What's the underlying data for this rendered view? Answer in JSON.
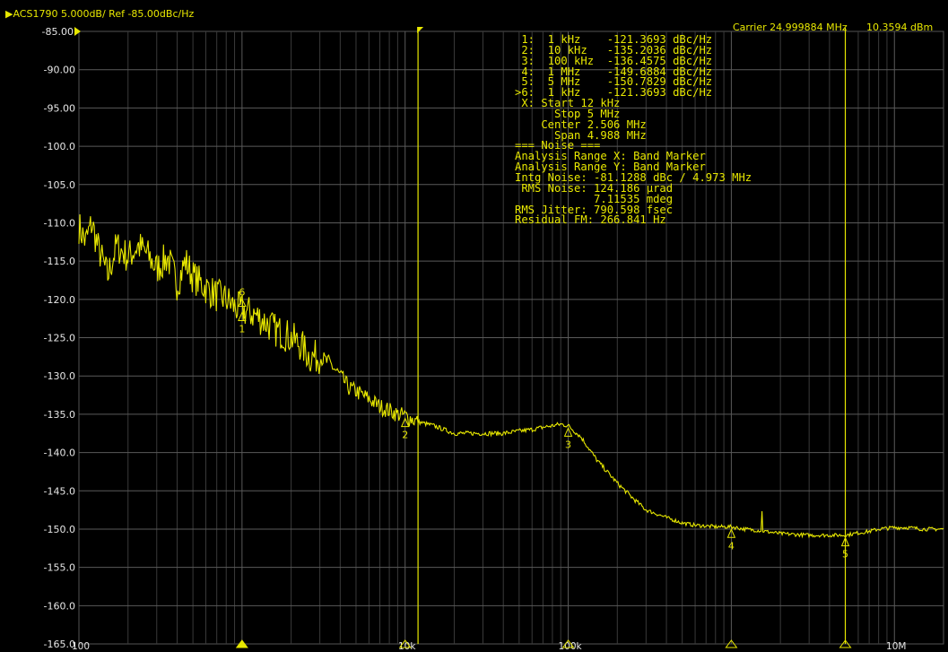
{
  "header": {
    "title": "ACS1790 5.000dB/ Ref -85.00dBc/Hz",
    "carrier": "Carrier 24.999884 MHz",
    "carrier_power": "10.3594 dBm"
  },
  "info_lines": [
    " 1:  1 kHz    -121.3693 dBc/Hz",
    " 2:  10 kHz   -135.2036 dBc/Hz",
    " 3:  100 kHz  -136.4575 dBc/Hz",
    " 4:  1 MHz    -149.6884 dBc/Hz",
    " 5:  5 MHz    -150.7829 dBc/Hz",
    ">6:  1 kHz    -121.3693 dBc/Hz",
    " X: Start 12 kHz",
    "      Stop 5 MHz",
    "    Center 2.506 MHz",
    "      Span 4.988 MHz",
    "=== Noise ===",
    "Analysis Range X: Band Marker",
    "Analysis Range Y: Band Marker",
    "Intg Noise: -81.1288 dBc / 4.973 MHz",
    " RMS Noise: 124.186 µrad",
    "            7.11535 mdeg",
    "RMS Jitter: 790.598 fsec",
    "Residual FM: 266.841 Hz"
  ],
  "chart_data": {
    "type": "line",
    "xscale": "log",
    "xlim": [
      100,
      20000000
    ],
    "ylim": [
      -165,
      -85
    ],
    "ref_label": "-85.00",
    "y_ticks": [
      "-85.00",
      "-90.00",
      "-95.00",
      "-100.0",
      "-105.0",
      "-110.0",
      "-115.0",
      "-120.0",
      "-125.0",
      "-130.0",
      "-135.0",
      "-140.0",
      "-145.0",
      "-150.0",
      "-155.0",
      "-160.0",
      "-165.0"
    ],
    "x_tick_labels": [
      {
        "x": 100,
        "label": "100"
      },
      {
        "x": 10000,
        "label": "10k"
      },
      {
        "x": 100000,
        "label": "100k"
      },
      {
        "x": 10000000,
        "label": "10M"
      }
    ],
    "grid": true,
    "series": [
      {
        "x": [
          100,
          110,
          120,
          130,
          150,
          170,
          200,
          230,
          260,
          300,
          350,
          400,
          450,
          500,
          600,
          700,
          800,
          900,
          1000,
          1200,
          1400,
          1600,
          1800,
          2000,
          2300,
          2600,
          3000,
          3500,
          4000,
          4500,
          5000,
          6000,
          7000,
          8000,
          9000,
          10000,
          12000,
          15000,
          20000,
          25000,
          30000,
          40000,
          50000,
          60000,
          70000,
          80000,
          90000,
          100000,
          120000,
          150000,
          200000,
          250000,
          300000,
          400000,
          500000,
          600000,
          700000,
          800000,
          900000,
          1000000,
          1200000,
          1500000,
          2000000,
          3000000,
          4000000,
          5000000,
          6000000,
          7000000,
          8000000,
          10000000,
          12000000,
          15000000,
          20000000
        ],
        "y": [
          -110.5,
          -112.5,
          -110,
          -113,
          -117,
          -113,
          -114.5,
          -113,
          -114,
          -116,
          -114.5,
          -118,
          -115,
          -117,
          -118.5,
          -119.5,
          -120,
          -121,
          -121.4,
          -122,
          -123,
          -124,
          -124.5,
          -125,
          -126,
          -127.5,
          -127.5,
          -128.5,
          -130,
          -131.5,
          -132,
          -133,
          -134,
          -134.5,
          -135,
          -135.2,
          -136,
          -136.5,
          -137.5,
          -137.5,
          -137.5,
          -137.5,
          -137.2,
          -137,
          -136.7,
          -136.5,
          -136.3,
          -136.5,
          -138,
          -141,
          -144,
          -146,
          -147.5,
          -148.5,
          -149.2,
          -149.5,
          -149.6,
          -149.7,
          -149.7,
          -149.7,
          -150,
          -150.2,
          -150.6,
          -150.8,
          -150.8,
          -150.8,
          -150.5,
          -150.3,
          -150,
          -149.8,
          -149.8,
          -150,
          -150
        ]
      }
    ],
    "markers": [
      {
        "label": "1",
        "x": 1000,
        "y": -121.3693
      },
      {
        "label": "2",
        "x": 10000,
        "y": -135.2036
      },
      {
        "label": "3",
        "x": 100000,
        "y": -136.4575
      },
      {
        "label": "4",
        "x": 1000000,
        "y": -149.6884
      },
      {
        "label": "5",
        "x": 5000000,
        "y": -150.7829
      },
      {
        "label": "6",
        "x": 1000,
        "y": -121.3693
      }
    ],
    "band_start": 12000,
    "band_stop": 5000000
  },
  "colors": {
    "trace": "#e8e800",
    "grid": "#3a3a3a",
    "background": "#000000"
  }
}
